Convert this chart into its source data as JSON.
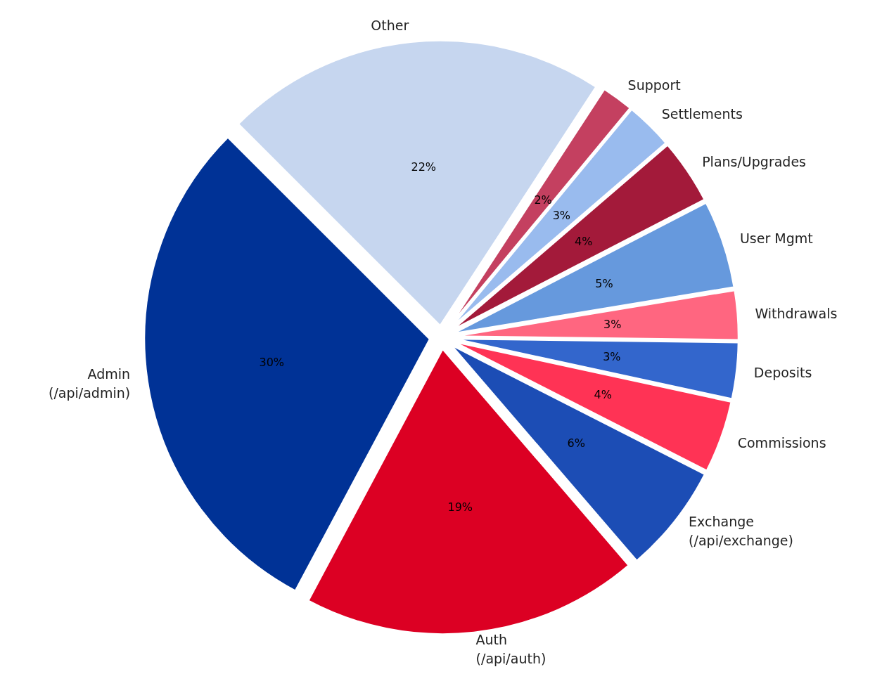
{
  "chart_data": {
    "type": "pie",
    "categories": [
      "Admin\n(/api/admin)",
      "Auth\n(/api/auth)",
      "Exchange\n(/api/exchange)",
      "Commissions",
      "Deposits",
      "Withdrawals",
      "User Mgmt",
      "Plans/Upgrades",
      "Settlements",
      "Support",
      "Other"
    ],
    "values": [
      29.7,
      19.1,
      6.2,
      4.1,
      3.2,
      2.8,
      5.0,
      3.7,
      2.7,
      1.8,
      21.7
    ],
    "value_labels": [
      "30%",
      "19%",
      "6%",
      "4%",
      "3%",
      "3%",
      "5%",
      "4%",
      "3%",
      "2%",
      "22%"
    ],
    "colors": [
      "#003296",
      "#dc0023",
      "#1c4db5",
      "#ff3355",
      "#3366cc",
      "#ff6680",
      "#6699dd",
      "#a31a3a",
      "#99bbee",
      "#c44060",
      "#c6d6ef"
    ]
  }
}
